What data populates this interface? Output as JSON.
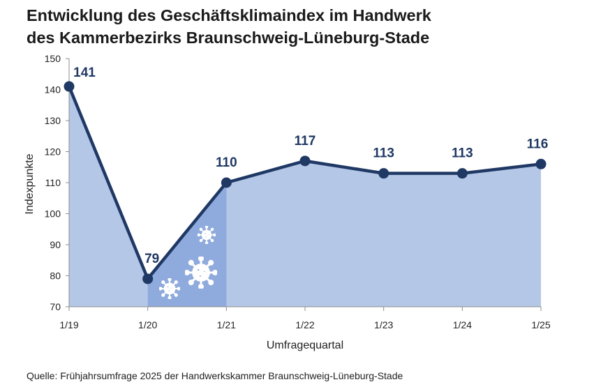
{
  "title": {
    "line1": "Entwicklung des Geschäftsklimaindex im Handwerk",
    "line2": "des Kammerbezirks Braunschweig-Lüneburg-Stade"
  },
  "source": "Quelle: Frühjahrsumfrage 2025 der Handwerkskammer Braunschweig-Lüneburg-Stade",
  "colors": {
    "line": "#1f3864",
    "area": "#b4c7e7",
    "covid_band": "#8faadc",
    "virus_icon": "#ffffff"
  },
  "chart_data": {
    "type": "line",
    "categories": [
      "1/19",
      "1/20",
      "1/21",
      "1/22",
      "1/23",
      "1/24",
      "1/25"
    ],
    "series": [
      {
        "values": [
          141,
          79,
          110,
          117,
          113,
          113,
          116
        ]
      }
    ],
    "data_labels": [
      "141",
      "79",
      "110",
      "117",
      "113",
      "113",
      "116"
    ],
    "xlabel": "Umfragequartal",
    "ylabel": "Indexpunkte",
    "ylim": [
      70,
      150
    ],
    "yticks": [
      70,
      80,
      90,
      100,
      110,
      120,
      130,
      140,
      150
    ],
    "area_fill": true,
    "highlight_band": {
      "from": "1/20",
      "to": "1/21",
      "icon": "coronavirus-icon"
    },
    "grid": false,
    "legend": "none"
  }
}
